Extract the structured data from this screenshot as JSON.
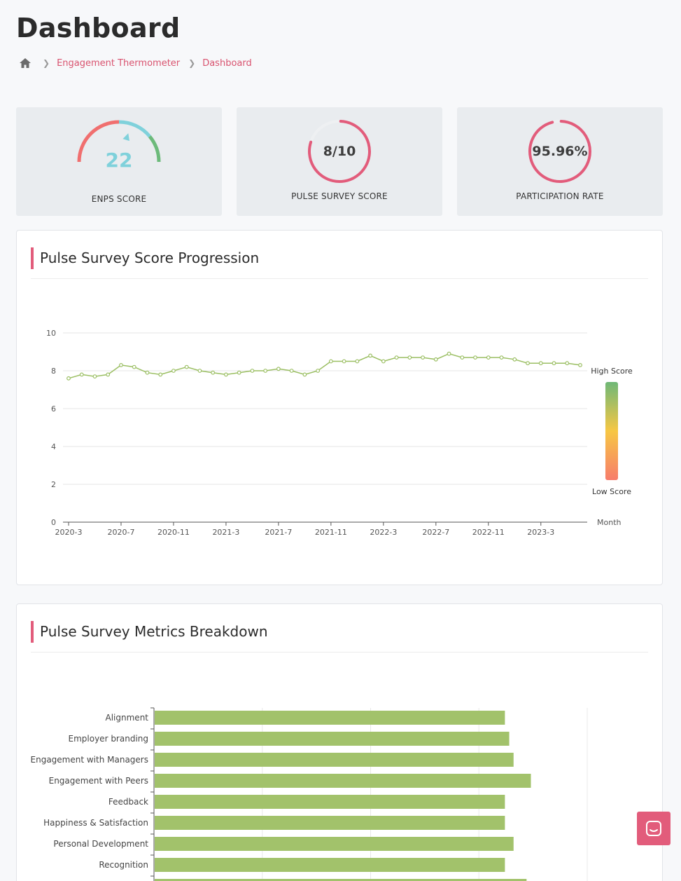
{
  "page": {
    "title": "Dashboard"
  },
  "breadcrumb": {
    "items": [
      "Engagement Thermometer",
      "Dashboard"
    ]
  },
  "kpis": {
    "enps": {
      "value": "22",
      "label": "ENPS SCORE",
      "indicator_fraction": 0.6
    },
    "pulse": {
      "value": "8/10",
      "label": "PULSE SURVEY SCORE",
      "fraction": 0.8
    },
    "participation": {
      "value": "95.96%",
      "label": "PARTICIPATION RATE",
      "fraction": 0.9596
    }
  },
  "colors": {
    "accent": "#e25c7b",
    "line": "#9bbf63",
    "teal": "#7fd1db",
    "green": "#6cba7a",
    "coral": "#f06f6f"
  },
  "progression": {
    "title": "Pulse Survey Score Progression",
    "legend": {
      "high": "High Score",
      "low": "Low Score"
    },
    "chart_data": {
      "type": "line",
      "xlabel": "Month",
      "ylabel": "",
      "ylim": [
        0,
        10
      ],
      "yticks": [
        0,
        2,
        4,
        6,
        8,
        10
      ],
      "xticks": [
        "2020-3",
        "2020-7",
        "2020-11",
        "2021-3",
        "2021-7",
        "2021-11",
        "2022-3",
        "2022-7",
        "2022-11",
        "2023-3"
      ],
      "x": [
        "2020-3",
        "2020-4",
        "2020-5",
        "2020-6",
        "2020-7",
        "2020-8",
        "2020-9",
        "2020-10",
        "2020-11",
        "2020-12",
        "2021-1",
        "2021-2",
        "2021-3",
        "2021-4",
        "2021-5",
        "2021-6",
        "2021-7",
        "2021-8",
        "2021-9",
        "2021-10",
        "2021-11",
        "2021-12",
        "2022-1",
        "2022-2",
        "2022-3",
        "2022-4",
        "2022-5",
        "2022-6",
        "2022-7",
        "2022-8",
        "2022-9",
        "2022-10",
        "2022-11",
        "2022-12",
        "2023-1",
        "2023-2",
        "2023-3",
        "2023-4",
        "2023-5",
        "2023-6"
      ],
      "values": [
        7.6,
        7.8,
        7.7,
        7.8,
        8.3,
        8.2,
        7.9,
        7.8,
        8.0,
        8.2,
        8.0,
        7.9,
        7.8,
        7.9,
        8.0,
        8.0,
        8.1,
        8.0,
        7.8,
        8.0,
        8.5,
        8.5,
        8.5,
        8.8,
        8.5,
        8.7,
        8.7,
        8.7,
        8.6,
        8.9,
        8.7,
        8.7,
        8.7,
        8.7,
        8.6,
        8.4,
        8.4,
        8.4,
        8.4,
        8.3
      ],
      "visualmap": {
        "min": 0,
        "max": 10,
        "colors": [
          "#f77c6b",
          "#f7c744",
          "#6fb877"
        ]
      }
    }
  },
  "breakdown": {
    "title": "Pulse Survey Metrics Breakdown",
    "chart_data": {
      "type": "bar",
      "orientation": "horizontal",
      "categories": [
        "Alignment",
        "Employer branding",
        "Engagement with Managers",
        "Engagement with Peers",
        "Feedback",
        "Happiness & Satisfaction",
        "Personal Development",
        "Recognition",
        ""
      ],
      "values": [
        8.1,
        8.2,
        8.3,
        8.7,
        8.1,
        8.1,
        8.3,
        8.1,
        8.6
      ],
      "xlim": [
        0,
        10
      ]
    }
  }
}
